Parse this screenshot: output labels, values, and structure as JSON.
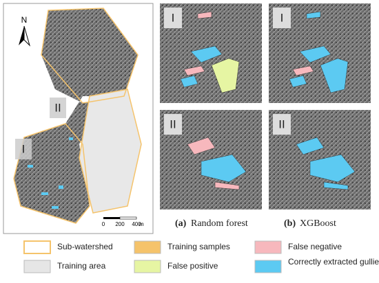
{
  "map": {
    "north": "N",
    "scale_bar": {
      "ticks": [
        0,
        200,
        400
      ],
      "unit": "m"
    },
    "zoom_labels": [
      "II",
      "I"
    ]
  },
  "panels": [
    {
      "caption_letter": "(a)",
      "caption": "Random forest",
      "labels": [
        "I",
        "II"
      ]
    },
    {
      "caption_letter": "(b)",
      "caption": "XGBoost",
      "labels": [
        "I",
        "II"
      ]
    }
  ],
  "legend": [
    {
      "label": "Sub-watershed",
      "color": "#f5c36b"
    },
    {
      "label": "Training samples",
      "color": "#f5c36b"
    },
    {
      "label": "False negative",
      "color": "#f7b8bd"
    },
    {
      "label": "Training area",
      "color": "#e6e6e6"
    },
    {
      "label": "False positive",
      "color": "#e6f5a3"
    },
    {
      "label": "Correctly extracted gullies",
      "color": "#5ccaf2"
    }
  ]
}
